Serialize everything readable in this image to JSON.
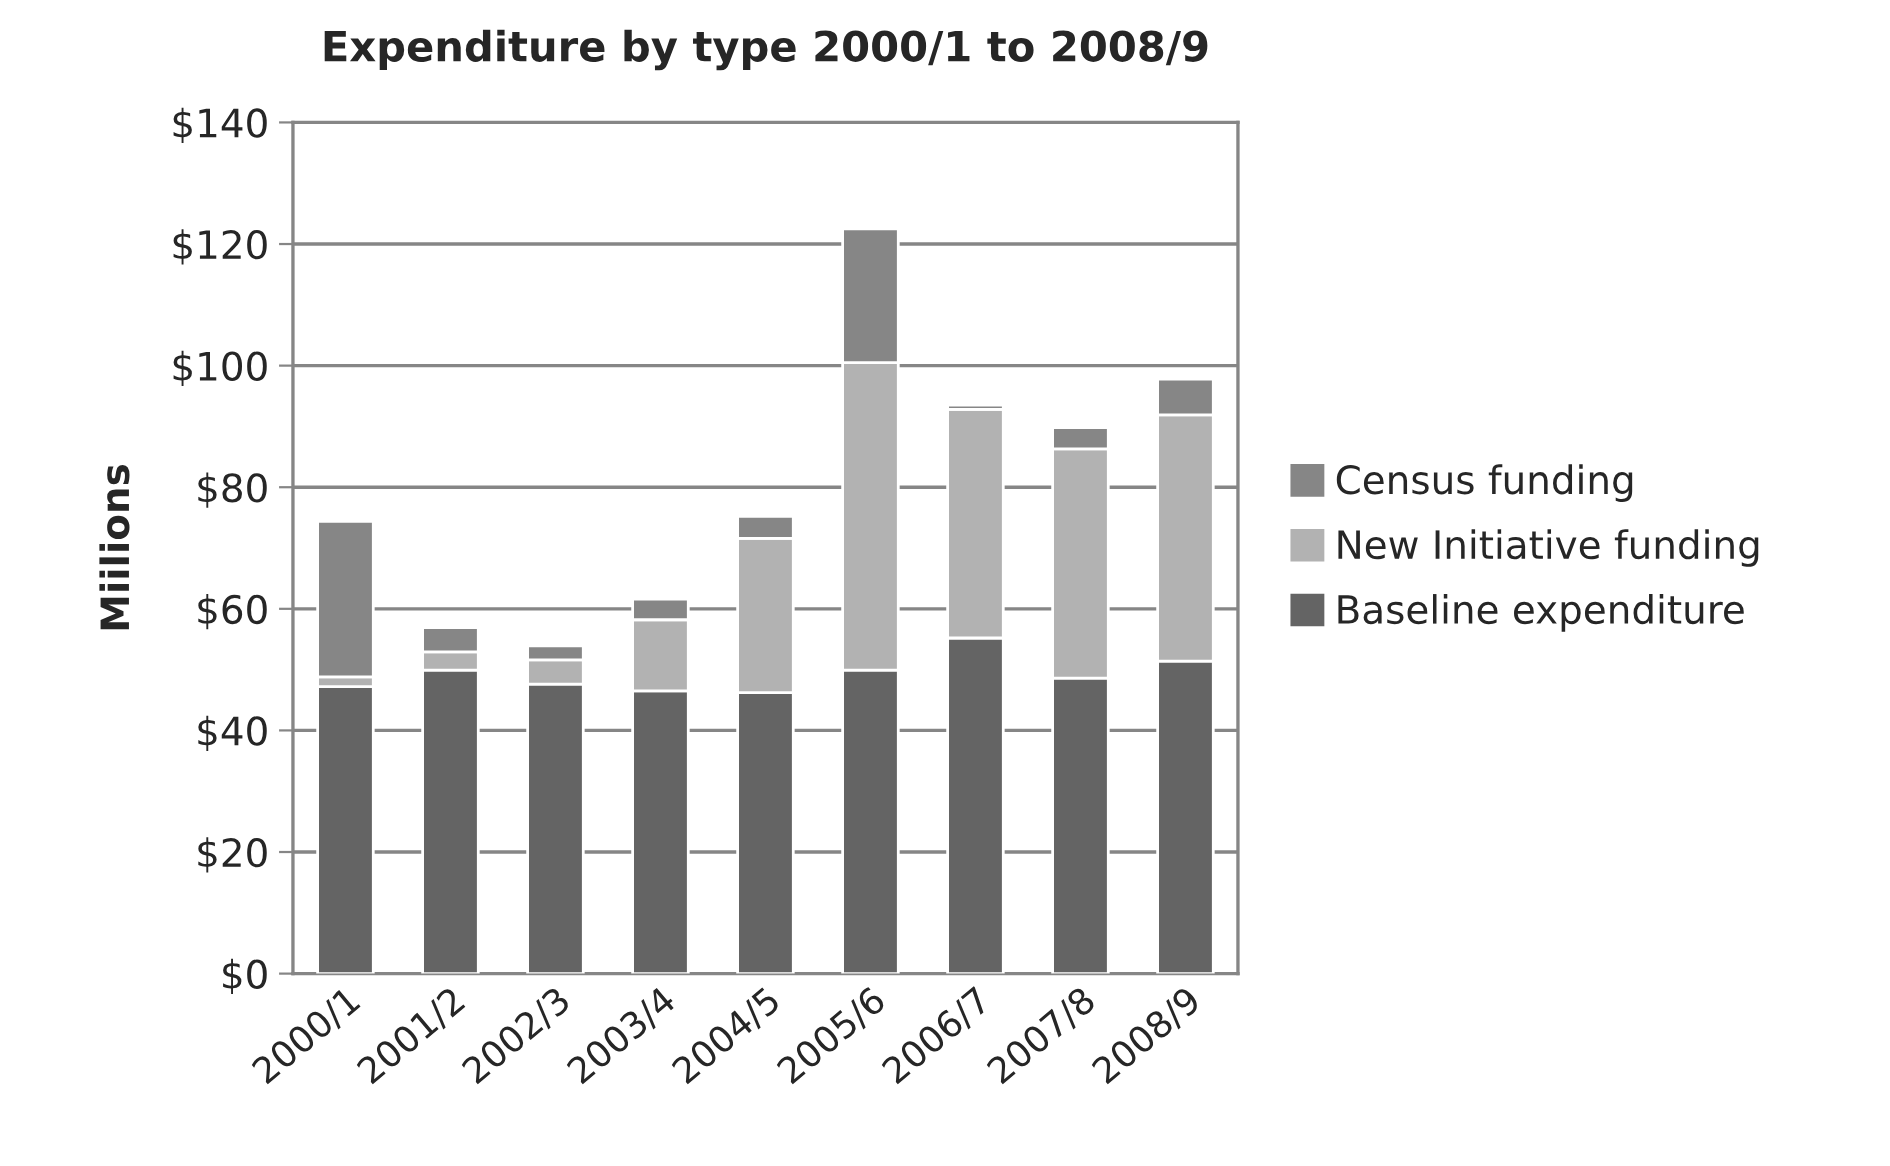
{
  "chart_data": {
    "type": "bar",
    "title": "Expenditure by type 2000/1 to 2008/9",
    "ylabel": "Miilions",
    "categories": [
      "2000/1",
      "2001/2",
      "2002/3",
      "2003/4",
      "2004/5",
      "2005/6",
      "2006/7",
      "2007/8",
      "2008/9"
    ],
    "stacked": true,
    "series": [
      {
        "name": "Baseline expenditure",
        "color": "#646464",
        "values": [
          47.2,
          49.9,
          47.6,
          46.5,
          46.2,
          49.9,
          55.2,
          48.6,
          51.4
        ]
      },
      {
        "name": "New Initiative funding",
        "color": "#b2b2b2",
        "values": [
          1.6,
          3.0,
          4.0,
          11.7,
          25.4,
          50.6,
          37.6,
          37.7,
          40.5
        ]
      },
      {
        "name": "Census funding",
        "color": "#868686",
        "values": [
          25.6,
          4.0,
          2.3,
          3.4,
          3.6,
          22.0,
          0.7,
          3.5,
          5.9
        ]
      }
    ],
    "ylim": [
      0,
      140
    ],
    "yticks": [
      {
        "value": 0,
        "label": "$0"
      },
      {
        "value": 20,
        "label": "$20"
      },
      {
        "value": 40,
        "label": "$40"
      },
      {
        "value": 60,
        "label": "$60"
      },
      {
        "value": 80,
        "label": "$80"
      },
      {
        "value": 100,
        "label": "$100"
      },
      {
        "value": 120,
        "label": "$120"
      },
      {
        "value": 140,
        "label": "$140"
      }
    ],
    "grid": "y",
    "legend": "right"
  }
}
